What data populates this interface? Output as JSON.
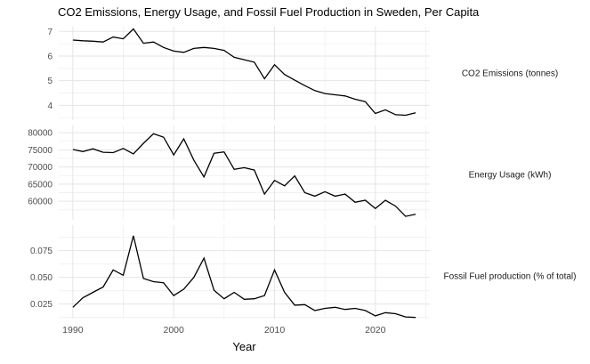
{
  "title": "CO2 Emissions, Energy Usage, and Fossil Fuel Production in Sweden, Per Capita",
  "colors": {
    "line": "#000000",
    "grid_major": "#e5e5e5",
    "grid_minor": "#efefef",
    "axis_text": "#4d4d4d",
    "strip_text": "#1a1a1a",
    "title_text": "#000000",
    "background": "#ffffff"
  },
  "x_axis": {
    "label": "Year",
    "range": [
      1988.6,
      2025.4
    ],
    "major_ticks": [
      {
        "value": 1990,
        "label": "1990"
      },
      {
        "value": 2000,
        "label": "2000"
      },
      {
        "value": 2010,
        "label": "2010"
      },
      {
        "value": 2020,
        "label": "2020"
      }
    ],
    "minor_ticks": [
      1995,
      2005,
      2015,
      2025
    ]
  },
  "chart_data": [
    {
      "type": "line",
      "id": "co2-emissions",
      "strip_label": "CO2 Emissions (tonnes)",
      "ylabel": "CO2 Emissions (tonnes)",
      "y_range": [
        3.4,
        7.19
      ],
      "y_major_ticks": [
        {
          "value": 7,
          "label": "7"
        },
        {
          "value": 6,
          "label": "6"
        },
        {
          "value": 5,
          "label": "5"
        },
        {
          "value": 4,
          "label": "4"
        }
      ],
      "y_minor_ticks": [
        6.5,
        5.5,
        4.5,
        3.5
      ],
      "x": [
        1990,
        1991,
        1992,
        1993,
        1994,
        1995,
        1996,
        1997,
        1998,
        1999,
        2000,
        2001,
        2002,
        2003,
        2004,
        2005,
        2006,
        2007,
        2008,
        2009,
        2010,
        2011,
        2012,
        2013,
        2014,
        2015,
        2016,
        2017,
        2018,
        2019,
        2020,
        2021,
        2022,
        2023,
        2024
      ],
      "values": [
        6.65,
        6.62,
        6.6,
        6.57,
        6.77,
        6.7,
        7.1,
        6.52,
        6.57,
        6.35,
        6.2,
        6.15,
        6.31,
        6.35,
        6.31,
        6.23,
        5.95,
        5.85,
        5.75,
        5.08,
        5.65,
        5.25,
        5.02,
        4.8,
        4.6,
        4.48,
        4.43,
        4.38,
        4.25,
        4.15,
        3.67,
        3.82,
        3.62,
        3.6,
        3.7
      ]
    },
    {
      "type": "line",
      "id": "energy-usage",
      "strip_label": "Energy Usage (kWh)",
      "ylabel": "Energy Usage (kWh)",
      "y_range": [
        54600,
        82100
      ],
      "y_major_ticks": [
        {
          "value": 80000,
          "label": "80000"
        },
        {
          "value": 75000,
          "label": "75000"
        },
        {
          "value": 70000,
          "label": "70000"
        },
        {
          "value": 65000,
          "label": "65000"
        },
        {
          "value": 60000,
          "label": "60000"
        }
      ],
      "y_minor_ticks": [
        77500,
        72500,
        67500,
        62500,
        57500
      ],
      "x": [
        1990,
        1991,
        1992,
        1993,
        1994,
        1995,
        1996,
        1997,
        1998,
        1999,
        2000,
        2001,
        2002,
        2003,
        2004,
        2005,
        2006,
        2007,
        2008,
        2009,
        2010,
        2011,
        2012,
        2013,
        2014,
        2015,
        2016,
        2017,
        2018,
        2019,
        2020,
        2021,
        2022,
        2023,
        2024
      ],
      "values": [
        75100,
        74500,
        75300,
        74300,
        74200,
        75400,
        73800,
        76900,
        79700,
        78700,
        73500,
        78200,
        72000,
        67100,
        74000,
        74400,
        69300,
        69800,
        69100,
        62100,
        66100,
        64500,
        67400,
        62500,
        61500,
        62800,
        61500,
        62100,
        59700,
        60300,
        57900,
        60300,
        58600,
        55600,
        56200
      ]
    },
    {
      "type": "line",
      "id": "fossil-fuel-production",
      "strip_label": "Fossil Fuel production (% of total)",
      "ylabel": "Fossil Fuel production (% of total)",
      "y_range": [
        0.0114,
        0.0989
      ],
      "y_major_ticks": [
        {
          "value": 0.075,
          "label": "0.075"
        },
        {
          "value": 0.05,
          "label": "0.050"
        },
        {
          "value": 0.025,
          "label": "0.025"
        }
      ],
      "y_minor_ticks": [
        0.0875,
        0.0625,
        0.0375,
        0.0125
      ],
      "x": [
        1990,
        1991,
        1992,
        1993,
        1994,
        1995,
        1996,
        1997,
        1998,
        1999,
        2000,
        2001,
        2002,
        2003,
        2004,
        2005,
        2006,
        2007,
        2008,
        2009,
        2010,
        2011,
        2012,
        2013,
        2014,
        2015,
        2016,
        2017,
        2018,
        2019,
        2020,
        2021,
        2022,
        2023,
        2024
      ],
      "values": [
        0.022,
        0.031,
        0.036,
        0.041,
        0.057,
        0.052,
        0.089,
        0.049,
        0.046,
        0.045,
        0.033,
        0.039,
        0.05,
        0.068,
        0.038,
        0.03,
        0.036,
        0.0295,
        0.03,
        0.033,
        0.057,
        0.036,
        0.024,
        0.0245,
        0.019,
        0.021,
        0.022,
        0.02,
        0.021,
        0.019,
        0.014,
        0.017,
        0.016,
        0.013,
        0.0125
      ]
    }
  ]
}
